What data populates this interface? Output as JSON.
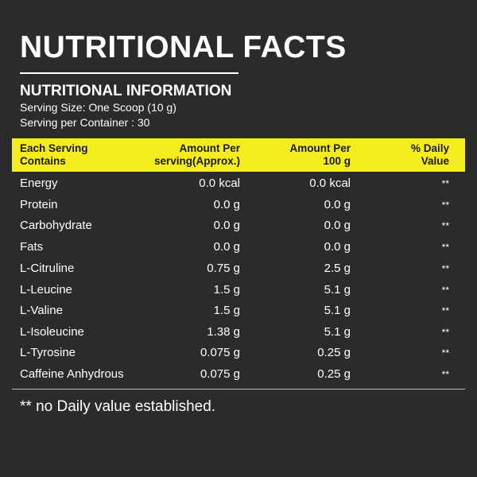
{
  "header": {
    "title": "NUTRITIONAL FACTS",
    "subtitle": "NUTRITIONAL INFORMATION",
    "serving_size": "Serving Size: One Scoop (10 g)",
    "servings_per_container": "Serving per Container : 30"
  },
  "table": {
    "columns": [
      [
        "Each Serving",
        "Contains"
      ],
      [
        "Amount Per",
        "serving(Approx.)"
      ],
      [
        "Amount Per",
        "100 g"
      ],
      [
        "% Daily",
        "Value"
      ]
    ],
    "rows": [
      [
        "Energy",
        "0.0 kcal",
        "0.0 kcal",
        "**"
      ],
      [
        "Protein",
        "0.0 g",
        "0.0 g",
        "**"
      ],
      [
        "Carbohydrate",
        "0.0 g",
        "0.0 g",
        "**"
      ],
      [
        "Fats",
        "0.0 g",
        "0.0 g",
        "**"
      ],
      [
        "L-Citruline",
        "0.75 g",
        "2.5 g",
        "**"
      ],
      [
        "L-Leucine",
        "1.5 g",
        "5.1 g",
        "**"
      ],
      [
        "L-Valine",
        "1.5 g",
        "5.1 g",
        "**"
      ],
      [
        "L-Isoleucine",
        "1.38 g",
        "5.1 g",
        "**"
      ],
      [
        "L-Tyrosine",
        "0.075 g",
        "0.25 g",
        "**"
      ],
      [
        "Caffeine Anhydrous",
        "0.075 g",
        "0.25 g",
        "**"
      ]
    ]
  },
  "footnote": "** no Daily value established.",
  "colors": {
    "background": "#2b2b2b",
    "header_band": "#f5ec1f",
    "text": "#ffffff"
  }
}
